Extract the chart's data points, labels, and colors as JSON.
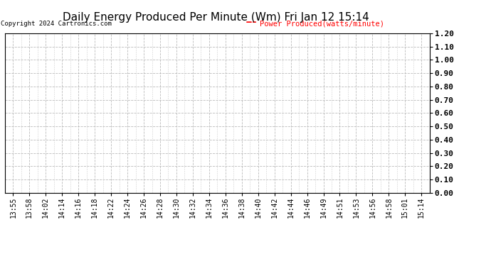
{
  "title": "Daily Energy Produced Per Minute (Wm) Fri Jan 12 15:14",
  "copyright_text": "Copyright 2024 Cartronics.com",
  "legend_label": "Power Produced(watts/minute)",
  "legend_color": "#ff0000",
  "x_tick_labels": [
    "13:55",
    "13:58",
    "14:02",
    "14:14",
    "14:16",
    "14:18",
    "14:22",
    "14:24",
    "14:26",
    "14:28",
    "14:30",
    "14:32",
    "14:34",
    "14:36",
    "14:38",
    "14:40",
    "14:42",
    "14:44",
    "14:46",
    "14:49",
    "14:51",
    "14:53",
    "14:56",
    "14:58",
    "15:01",
    "15:14"
  ],
  "y_min": 0.0,
  "y_max": 1.2,
  "y_ticks": [
    0.0,
    0.1,
    0.2,
    0.3,
    0.4,
    0.5,
    0.6,
    0.7,
    0.8,
    0.9,
    1.0,
    1.1,
    1.2
  ],
  "background_color": "#ffffff",
  "grid_color": "#bbbbbb",
  "title_fontsize": 11,
  "copyright_fontsize": 6.5,
  "legend_fontsize": 7.5,
  "tick_fontsize": 7,
  "ytick_fontsize": 8,
  "plot_area_bg": "#ffffff"
}
